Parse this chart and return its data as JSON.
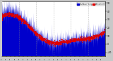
{
  "background_color": "#c8c8c8",
  "plot_bg": "#ffffff",
  "n_points": 1440,
  "y_min": -15,
  "y_max": 52,
  "blue_color": "#0000cc",
  "red_color": "#dd0000",
  "legend_blue_label": "Outdoor Temp",
  "legend_red_label": "Wind Chill",
  "yticks": [
    -10,
    0,
    10,
    20,
    30,
    40,
    50
  ],
  "grid_color": "#888888",
  "vgrid_count": 5,
  "title_fontsize": 3.5,
  "tick_fontsize": 2.2
}
